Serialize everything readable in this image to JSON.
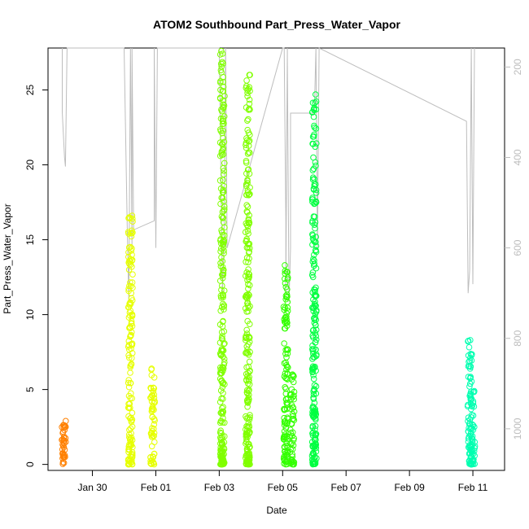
{
  "chart_data": {
    "type": "scatter",
    "title": "ATOM2 Southbound Part_Press_Water_Vapor",
    "xlabel": "Date",
    "ylabel": "Part_Press_Water_Vapor",
    "x_tick_labels": [
      "Jan 30",
      "Feb 01",
      "Feb 03",
      "Feb 05",
      "Feb 07",
      "Feb 09",
      "Feb 11"
    ],
    "x_tick_days": [
      30,
      32,
      34,
      36,
      38,
      40,
      42
    ],
    "xlim_days": [
      28.6,
      43.0
    ],
    "ylim": [
      -0.4,
      27.8
    ],
    "y_ticks": [
      0,
      5,
      10,
      15,
      20,
      25
    ],
    "y2_ticks": [
      200,
      400,
      600,
      800,
      1000
    ],
    "y2lim": [
      1092,
      158
    ],
    "grid": false,
    "legend": "none",
    "colors": {
      "series_colors": [
        "#FF8000",
        "#E6FF00",
        "#80FF00",
        "#33FF00",
        "#00FF40",
        "#00FFB0"
      ],
      "pressure_line": "#bdbdbd",
      "axis": "#000000",
      "axis_right": "#bdbdbd"
    },
    "series": [
      {
        "x_days": 29.1,
        "ymin": 0,
        "ymax": 2.9,
        "color_index": 0
      },
      {
        "x_days": 31.2,
        "ymin": 0,
        "ymax": 16.6,
        "color_index": 1
      },
      {
        "x_days": 31.9,
        "ymin": 0,
        "ymax": 6.4,
        "color_index": 1
      },
      {
        "x_days": 34.1,
        "ymin": 0,
        "ymax": 27.6,
        "color_index": 2
      },
      {
        "x_days": 34.9,
        "ymin": 0,
        "ymax": 26.0,
        "color_index": 2
      },
      {
        "x_days": 36.1,
        "ymin": 0,
        "ymax": 13.3,
        "color_index": 3
      },
      {
        "x_days": 36.3,
        "ymin": 0,
        "ymax": 6.0,
        "color_index": 3
      },
      {
        "x_days": 37.0,
        "ymin": 0,
        "ymax": 24.7,
        "color_index": 4
      },
      {
        "x_days": 41.9,
        "ymin": 0,
        "ymax": 8.3,
        "color_index": 5
      },
      {
        "x_days": 42.0,
        "ymin": 0,
        "ymax": 4.9,
        "color_index": 5
      }
    ],
    "pressure_trace": [
      [
        29.05,
        158
      ],
      [
        29.05,
        300
      ],
      [
        29.12,
        400
      ],
      [
        29.15,
        420
      ],
      [
        29.2,
        158
      ],
      [
        31.0,
        158
      ],
      [
        31.1,
        560
      ],
      [
        31.15,
        720
      ],
      [
        31.2,
        158
      ],
      [
        31.25,
        600
      ],
      [
        31.25,
        158
      ],
      [
        31.3,
        560
      ],
      [
        31.95,
        540
      ],
      [
        31.95,
        158
      ],
      [
        32.0,
        600
      ],
      [
        32.05,
        158
      ],
      [
        34.0,
        158
      ],
      [
        34.1,
        700
      ],
      [
        34.15,
        600
      ],
      [
        34.2,
        158
      ],
      [
        34.25,
        600
      ],
      [
        36.0,
        158
      ],
      [
        36.05,
        158
      ],
      [
        36.1,
        540
      ],
      [
        36.1,
        700
      ],
      [
        36.15,
        158
      ],
      [
        36.15,
        180
      ],
      [
        36.2,
        720
      ],
      [
        36.25,
        600
      ],
      [
        36.25,
        302
      ],
      [
        37.0,
        302
      ],
      [
        37.05,
        158
      ],
      [
        37.1,
        600
      ],
      [
        37.15,
        158
      ],
      [
        41.8,
        320
      ],
      [
        41.85,
        700
      ],
      [
        41.9,
        650
      ],
      [
        41.95,
        158
      ],
      [
        42.0,
        680
      ],
      [
        42.05,
        158
      ]
    ]
  }
}
